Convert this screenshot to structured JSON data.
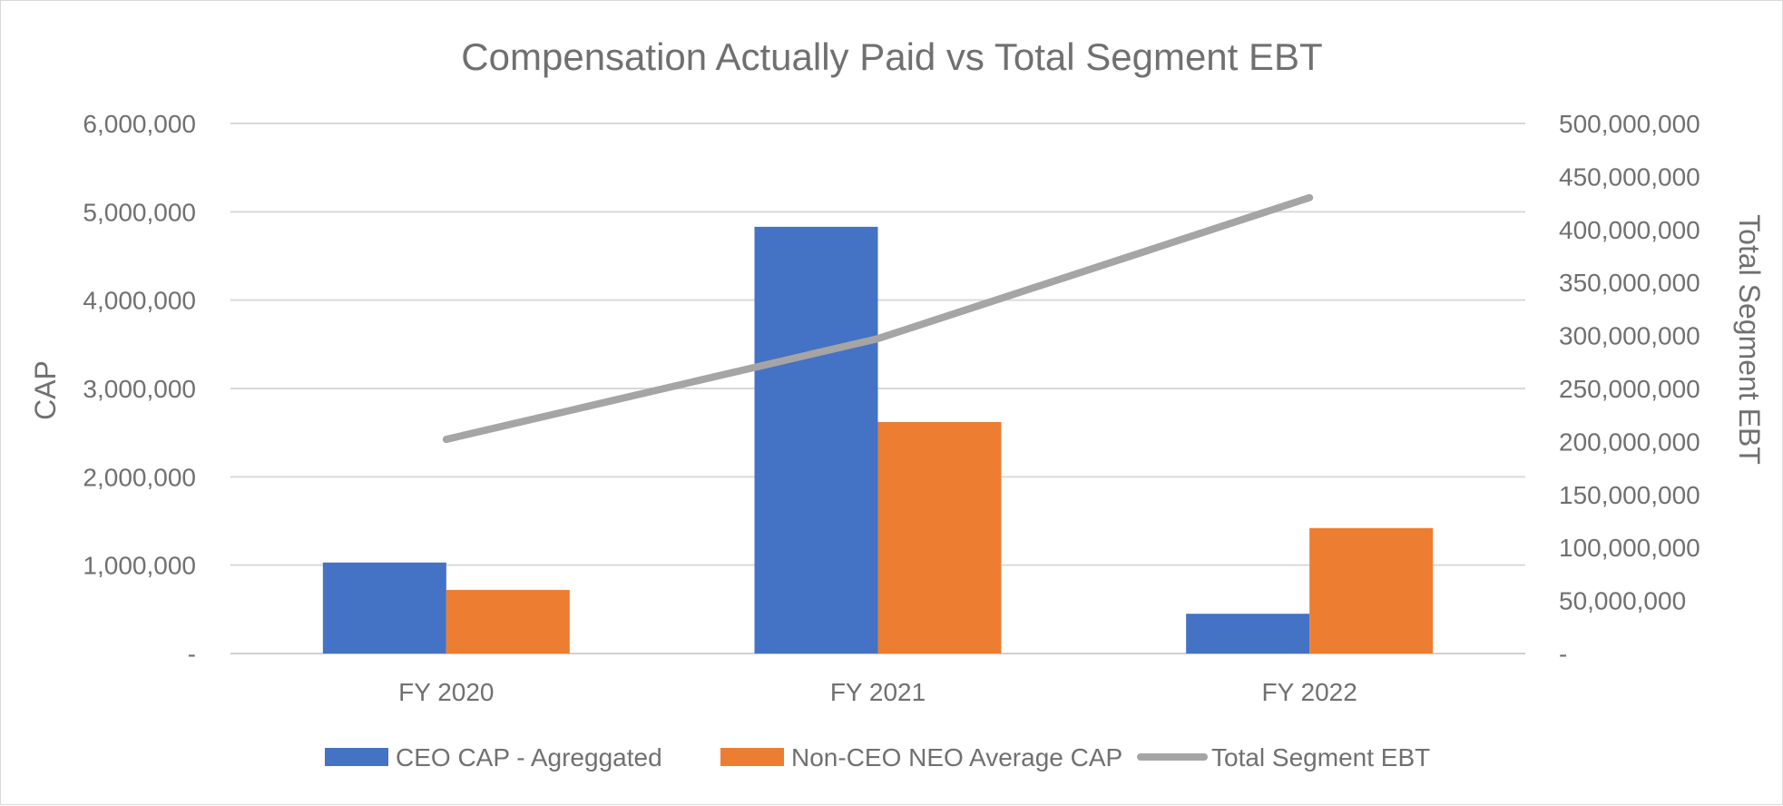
{
  "chart_data": {
    "type": "bar",
    "title": "Compensation Actually Paid vs Total Segment EBT",
    "categories": [
      "FY 2020",
      "FY 2021",
      "FY 2022"
    ],
    "ylabel": "CAP",
    "y2label": "Total Segment EBT",
    "ylim": [
      0,
      6000000
    ],
    "y2lim": [
      0,
      500000000
    ],
    "yticks": [
      "-",
      "1,000,000",
      "2,000,000",
      "3,000,000",
      "4,000,000",
      "5,000,000",
      "6,000,000"
    ],
    "y2ticks": [
      "-",
      "50,000,000",
      "100,000,000",
      "150,000,000",
      "200,000,000",
      "250,000,000",
      "300,000,000",
      "350,000,000",
      "400,000,000",
      "450,000,000",
      "500,000,000"
    ],
    "grid": true,
    "legend_position": "bottom",
    "series": [
      {
        "name": "CEO CAP - Agreggated",
        "type": "bar",
        "axis": "left",
        "color": "#4472C4",
        "values": [
          1030000,
          4830000,
          450000
        ]
      },
      {
        "name": "Non-CEO NEO Average CAP",
        "type": "bar",
        "axis": "left",
        "color": "#ED7D31",
        "values": [
          720000,
          2620000,
          1420000
        ]
      },
      {
        "name": "Total Segment EBT",
        "type": "line",
        "axis": "right",
        "color": "#A5A5A5",
        "values": [
          202000000,
          297000000,
          430000000
        ]
      }
    ]
  }
}
